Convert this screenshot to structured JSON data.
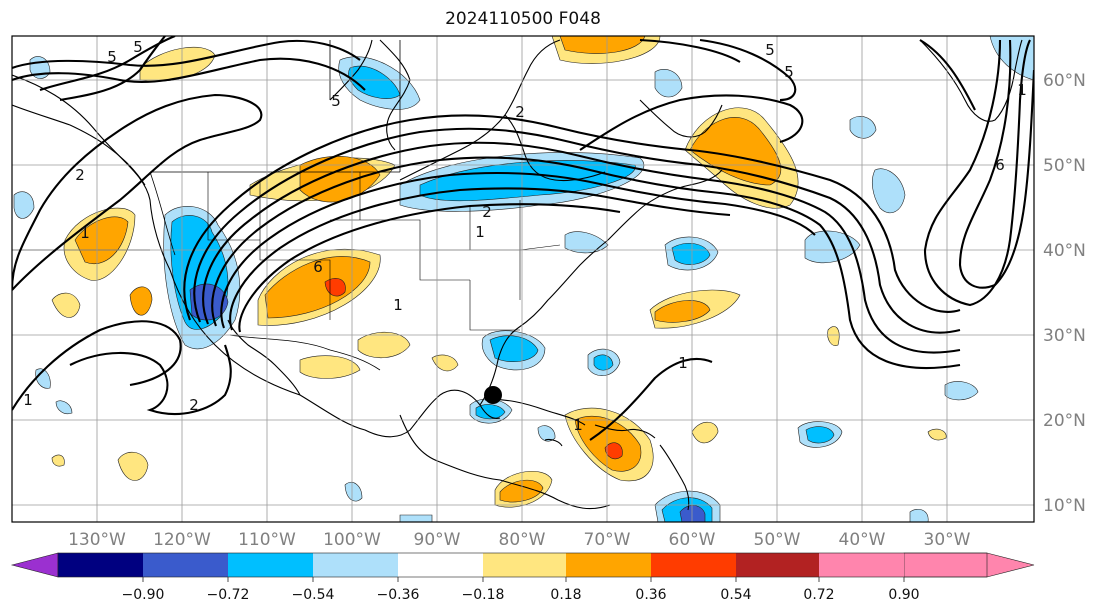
{
  "title": "2024110500 F048",
  "map": {
    "lon_labels": [
      "130°W",
      "120°W",
      "110°W",
      "100°W",
      "90°W",
      "80°W",
      "70°W",
      "60°W",
      "50°W",
      "40°W",
      "30°W"
    ],
    "lat_labels": [
      "60°N",
      "50°N",
      "40°N",
      "30°N",
      "20°N",
      "10°N"
    ],
    "contour_labels": [
      "5",
      "5",
      "5",
      "2",
      "2",
      "1",
      "1",
      "6",
      "2",
      "1",
      "5",
      "6",
      "1",
      "1",
      "2",
      "1",
      "5",
      "1"
    ],
    "marker": "storm-position-dot"
  },
  "colorbar": {
    "ticks": [
      "−0.90",
      "−0.72",
      "−0.54",
      "−0.36",
      "−0.18",
      "0.18",
      "0.36",
      "0.54",
      "0.72",
      "0.90"
    ],
    "colors": [
      "#9b30d0",
      "#000080",
      "#3a5bcc",
      "#00bfff",
      "#aee0fa",
      "#ffffff",
      "#ffe680",
      "#ffa500",
      "#ff3c00",
      "#b22222",
      "#ff85ad"
    ]
  }
}
